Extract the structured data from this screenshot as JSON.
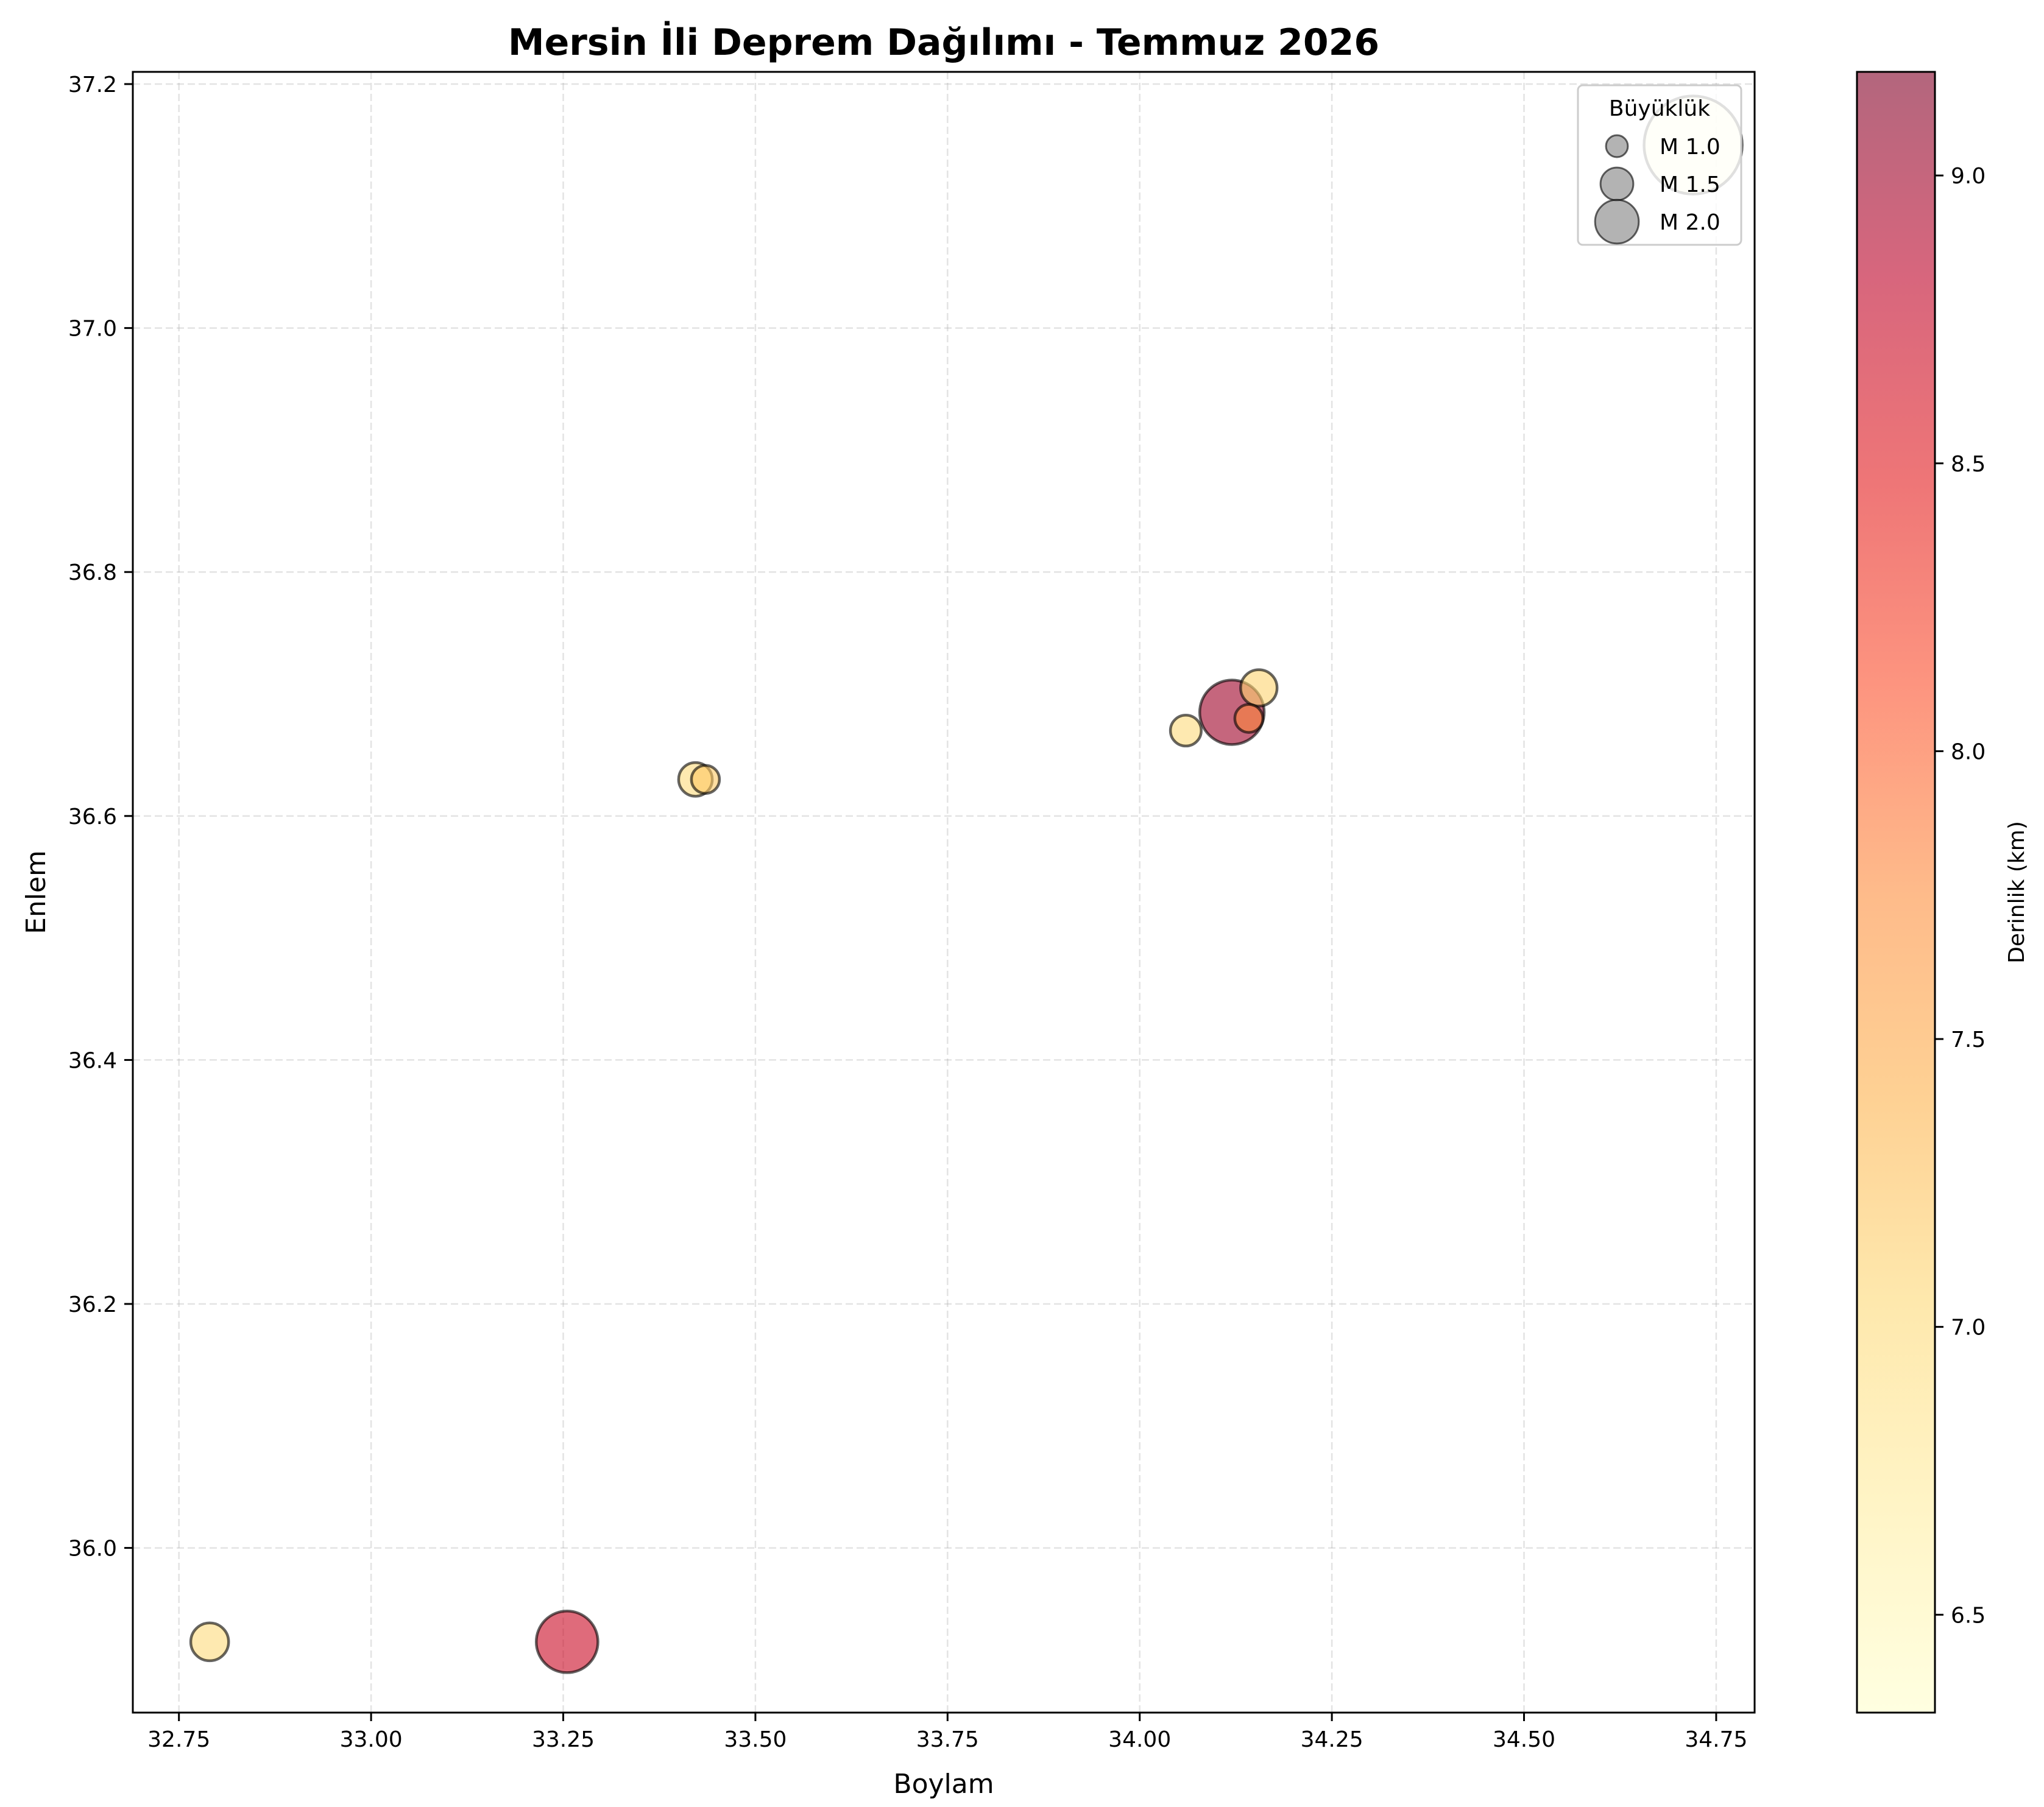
{
  "chart_data": {
    "type": "scatter",
    "title": "Mersin İli Deprem Dağılımı - Temmuz 2026",
    "xlabel": "Boylam",
    "ylabel": "Enlem",
    "xlim": [
      32.69,
      34.8
    ],
    "ylim": [
      35.865,
      37.21
    ],
    "xticks": [
      32.75,
      33.0,
      33.25,
      33.5,
      33.75,
      34.0,
      34.25,
      34.5,
      34.75
    ],
    "xtick_labels": [
      "32.75",
      "33.00",
      "33.25",
      "33.50",
      "33.75",
      "34.00",
      "34.25",
      "34.50",
      "34.75"
    ],
    "yticks": [
      36.0,
      36.2,
      36.4,
      36.6,
      36.8,
      37.0,
      37.2
    ],
    "ytick_labels": [
      "36.0",
      "36.2",
      "36.4",
      "36.6",
      "36.8",
      "37.0",
      "37.2"
    ],
    "grid": true,
    "legend": {
      "title": "Büyüklük",
      "placement": "top-right",
      "entries": [
        {
          "label": "M 1.0",
          "magnitude": 1.0
        },
        {
          "label": "M 1.5",
          "magnitude": 1.5
        },
        {
          "label": "M 2.0",
          "magnitude": 2.0
        }
      ]
    },
    "colorbar": {
      "label": "Derinlik (km)",
      "range": [
        6.33,
        9.18
      ],
      "ticks": [
        6.5,
        7.0,
        7.5,
        8.0,
        8.5,
        9.0
      ],
      "tick_labels": [
        "6.5",
        "7.0",
        "7.5",
        "8.0",
        "8.5",
        "9.0"
      ],
      "colormap": [
        "#ffffcc",
        "#ffeda0",
        "#fed976",
        "#feb24c",
        "#fd8d3c",
        "#fc4e2a",
        "#e31a1c",
        "#bd0026",
        "#800026"
      ]
    },
    "points": [
      {
        "lon": 32.79,
        "lat": 35.923,
        "magnitude": 1.35,
        "depth": 7.0
      },
      {
        "lon": 33.255,
        "lat": 35.923,
        "magnitude": 2.2,
        "depth": 8.7
      },
      {
        "lon": 33.422,
        "lat": 36.63,
        "magnitude": 1.2,
        "depth": 7.0
      },
      {
        "lon": 33.435,
        "lat": 36.63,
        "magnitude": 1.0,
        "depth": 7.2
      },
      {
        "lon": 34.06,
        "lat": 36.67,
        "magnitude": 1.1,
        "depth": 7.0
      },
      {
        "lon": 34.12,
        "lat": 36.685,
        "magnitude": 2.3,
        "depth": 9.0
      },
      {
        "lon": 34.142,
        "lat": 36.68,
        "magnitude": 1.0,
        "depth": 7.8
      },
      {
        "lon": 34.155,
        "lat": 36.705,
        "magnitude": 1.3,
        "depth": 7.1
      },
      {
        "lon": 34.72,
        "lat": 37.15,
        "magnitude": 3.5,
        "depth": 6.35
      }
    ]
  }
}
